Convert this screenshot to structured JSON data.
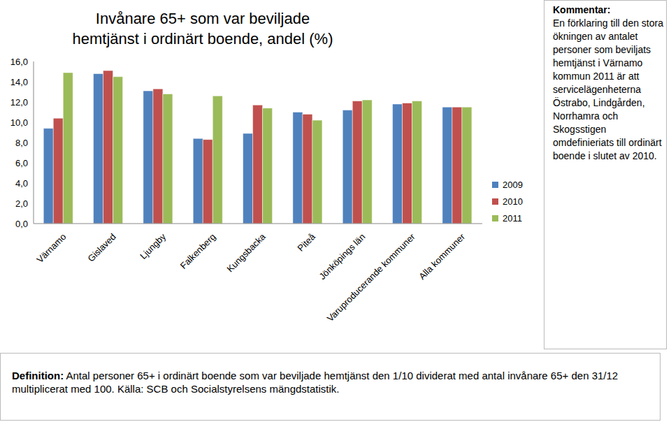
{
  "chart_data": {
    "type": "bar",
    "title": "Invånare 65+ som var beviljade hemtjänst i ordinärt boende, andel (%)",
    "categories": [
      "Värnamo",
      "Gislaved",
      "Ljungby",
      "Falkenberg",
      "Kungsbacka",
      "Piteå",
      "Jönköpings län",
      "Varuproducerande kommuner",
      "Alla kommuner"
    ],
    "series": [
      {
        "name": "2009",
        "color": "#4f81bd",
        "values": [
          9.4,
          14.8,
          13.1,
          8.4,
          8.9,
          11.0,
          11.2,
          11.8,
          11.5
        ]
      },
      {
        "name": "2010",
        "color": "#c0504d",
        "values": [
          10.4,
          15.1,
          13.3,
          8.3,
          11.7,
          10.8,
          12.1,
          11.9,
          11.5
        ]
      },
      {
        "name": "2011",
        "color": "#9bbb59",
        "values": [
          14.9,
          14.5,
          12.8,
          12.6,
          11.4,
          10.2,
          12.2,
          12.1,
          11.5
        ]
      }
    ],
    "ylim": [
      0,
      16
    ],
    "yticks": [
      {
        "value": 0,
        "label": "0,0"
      },
      {
        "value": 2,
        "label": "2,0"
      },
      {
        "value": 4,
        "label": "4,0"
      },
      {
        "value": 6,
        "label": "6,0"
      },
      {
        "value": 8,
        "label": "8,0"
      },
      {
        "value": 10,
        "label": "10,0"
      },
      {
        "value": 12,
        "label": "12,0"
      },
      {
        "value": 14,
        "label": "14,0"
      },
      {
        "value": 16,
        "label": "16,0"
      }
    ],
    "grid": false,
    "legend": "right",
    "annotations": [
      {
        "label": "Kommentar:",
        "text": "En förklaring till den stora ökningen av antalet personer som beviljats hemtjänst i Värnamo kommun 2011 är att servicelägenheterna Östrabo, Lindgården, Norrhamra och Skogsstigen omdefinieriats till ordinärt boende i slutet av 2010."
      },
      {
        "label": "Definition:",
        "text": "Antal personer 65+ i ordinärt boende som var beviljade hemtjänst den 1/10 dividerat med antal invånare 65+ den 31/12 multiplicerat med 100. Källa: SCB och Socialstyrelsens mängdstatistik."
      }
    ]
  }
}
